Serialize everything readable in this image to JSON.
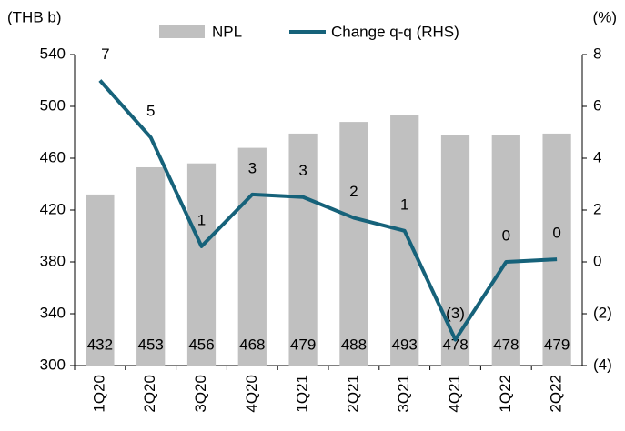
{
  "chart_data": {
    "type": "bar-line",
    "y_label": "(THB b)",
    "y2_label": "(%)",
    "categories": [
      "1Q20",
      "2Q20",
      "3Q20",
      "4Q20",
      "1Q21",
      "2Q21",
      "3Q21",
      "4Q21",
      "1Q22",
      "2Q22"
    ],
    "series": [
      {
        "name": "NPL",
        "type": "bar",
        "color": "#c0c0c0",
        "values": [
          432,
          453,
          456,
          468,
          479,
          488,
          493,
          478,
          478,
          479
        ]
      },
      {
        "name": "Change q-q (RHS)",
        "type": "line",
        "axis": "y2",
        "color": "#16627a",
        "values": [
          7.0,
          4.8,
          0.6,
          2.6,
          2.5,
          1.7,
          1.2,
          -3.0,
          0.0,
          0.1
        ],
        "value_labels": [
          "7",
          "5",
          "1",
          "3",
          "3",
          "2",
          "1",
          "(3)",
          "0",
          "0"
        ]
      }
    ],
    "ylim": [
      300,
      540
    ],
    "yticks": [
      300,
      340,
      380,
      420,
      460,
      500,
      540
    ],
    "y2lim": [
      -4,
      8
    ],
    "y2ticks": [
      {
        "value": -4,
        "label": "(4)"
      },
      {
        "value": -2,
        "label": "(2)"
      },
      0,
      2,
      4,
      6,
      8
    ],
    "legend": "top"
  }
}
